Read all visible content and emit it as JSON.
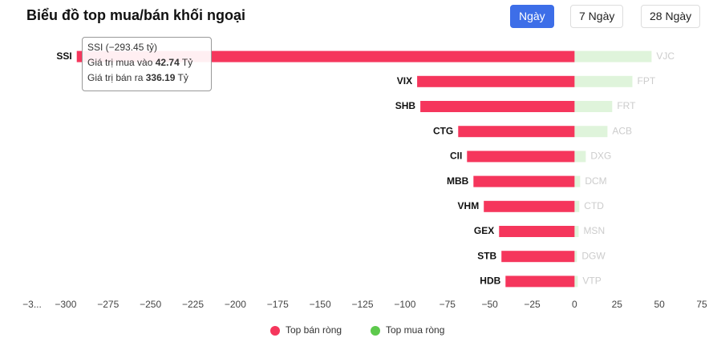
{
  "header": {
    "title": "Biểu đồ top mua/bán khối ngoại",
    "buttons": [
      "Ngày",
      "7 Ngày",
      "28 Ngày"
    ],
    "active_button": 0
  },
  "chart_data": {
    "type": "bar",
    "orientation": "horizontal",
    "series": [
      {
        "name": "Top bán ròng",
        "color": "#f5365c",
        "categories": [
          "SSI",
          "VIX",
          "SHB",
          "CTG",
          "CII",
          "MBB",
          "VHM",
          "GEX",
          "STB",
          "HDB"
        ],
        "values": [
          -293.45,
          -92.8,
          -90.9,
          -68.6,
          -63.4,
          -59.6,
          -53.5,
          -44.5,
          -43.1,
          -40.7
        ]
      },
      {
        "name": "Top mua ròng",
        "color": "#5dc94c",
        "categories": [
          "VJC",
          "FPT",
          "FRT",
          "ACB",
          "DXG",
          "DCM",
          "CTD",
          "MSN",
          "DGW",
          "VTP"
        ],
        "values": [
          45.4,
          34.1,
          22.2,
          19.4,
          6.6,
          3.3,
          2.8,
          2.4,
          1.4,
          1.9
        ]
      }
    ],
    "xlim": [
      -325,
      75
    ],
    "xticks": [
      {
        "value": -325,
        "label": "−3..."
      },
      {
        "value": -300,
        "label": "−300"
      },
      {
        "value": -275,
        "label": "−275"
      },
      {
        "value": -250,
        "label": "−250"
      },
      {
        "value": -225,
        "label": "−225"
      },
      {
        "value": -200,
        "label": "−200"
      },
      {
        "value": -175,
        "label": "−175"
      },
      {
        "value": -150,
        "label": "−150"
      },
      {
        "value": -125,
        "label": "−125"
      },
      {
        "value": -100,
        "label": "−100"
      },
      {
        "value": -75,
        "label": "−75"
      },
      {
        "value": -50,
        "label": "−50"
      },
      {
        "value": -25,
        "label": "−25"
      },
      0,
      25,
      50,
      75
    ],
    "tooltip": {
      "title": "SSI (−293.45 tỷ)",
      "rows": [
        {
          "label": "Giá trị mua vào",
          "value": 42.74,
          "unit": "Tỷ"
        },
        {
          "label": "Giá trị bán ra",
          "value": 336.19,
          "unit": "Tỷ"
        }
      ]
    }
  }
}
